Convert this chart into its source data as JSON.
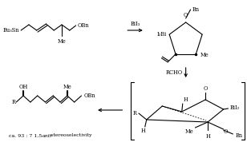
{
  "background_color": "#ffffff",
  "figsize": [
    3.08,
    1.78
  ],
  "dpi": 100,
  "font_size_main": 5.5,
  "font_size_small": 4.8,
  "font_size_label": 5.2,
  "font_size_selectivity": 4.5,
  "structures": {
    "top_left": {
      "bu3sn_label": "Bu₃Sn",
      "me_label": "Me",
      "obn_label": "OBn"
    },
    "arrow1_label": "BiI₃",
    "top_right": {
      "bn_label": "Bn",
      "o_label": "O",
      "i2bi_label": "I₂Bi",
      "me_label": "Me"
    },
    "rcho_label": "RCHO",
    "bottom_right": {
      "r_label": "R",
      "h_label": "H",
      "h2_label": "H",
      "me_label": "Me",
      "bil2_label": "BiI₂",
      "bn_label": "Bn",
      "o_label": "O"
    },
    "bottom_left": {
      "oh_label": "OH",
      "me_label": "Me",
      "obn_label": "OBn",
      "r_label": "R"
    }
  },
  "selectivity_prefix": "ca. 93 : 7 1,5-",
  "selectivity_italic": "anti",
  "selectivity_suffix": "-stereoselectivity"
}
